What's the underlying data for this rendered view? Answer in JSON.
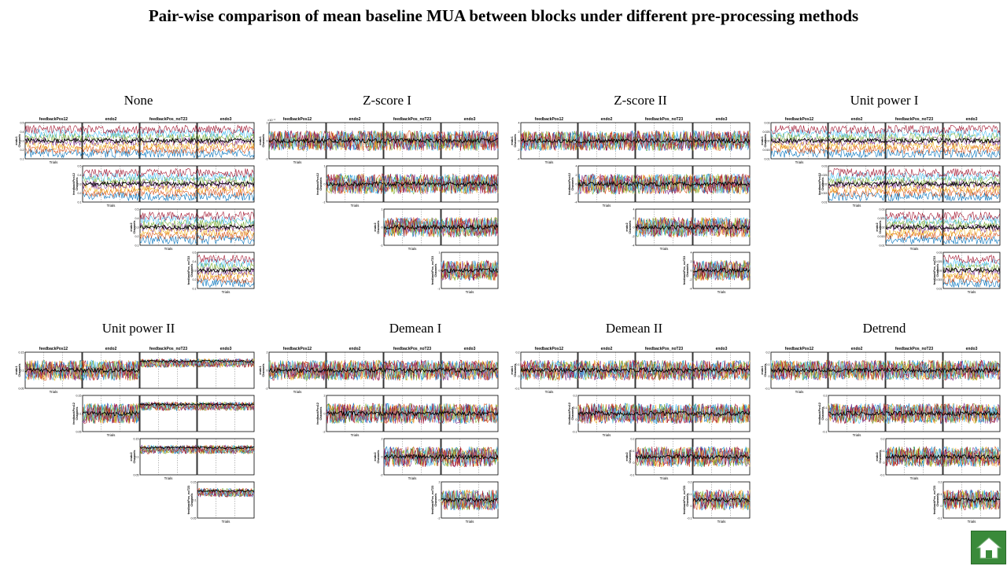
{
  "title": "Pair-wise comparison of mean baseline MUA between blocks under different pre-processing methods",
  "block_names": [
    "feedbackPos12",
    "endo2",
    "feedbackPos_noT23",
    "endo3"
  ],
  "row_labels": [
    [
      "endo1",
      "Channels"
    ],
    [
      "feedbackPos12",
      "Channels"
    ],
    [
      "endo2",
      "Channels"
    ],
    [
      "feedbackPos_noT23",
      "Channels"
    ]
  ],
  "x_label": "Trials",
  "colors": {
    "series": [
      "#0072bd",
      "#d95319",
      "#edb120",
      "#7e2f8e",
      "#77ac30",
      "#4dbeee",
      "#a2142f"
    ],
    "mean_line": "#000000",
    "home_button": "#3a8a3a"
  },
  "icons": {
    "home": "home-icon"
  },
  "chart_data": [
    {
      "type": "line",
      "method": "None",
      "ylim": [
        0.1,
        0.5
      ],
      "yticks": [
        "0.1",
        "0.2",
        "0.3",
        "0.4",
        "0.5"
      ],
      "multiplier": "",
      "style": "stacked"
    },
    {
      "type": "line",
      "method": "Z-score I",
      "ylim": [
        -1,
        1
      ],
      "yticks": [
        "-1",
        "0",
        "1"
      ],
      "multiplier": "×10⁻³",
      "style": "centered"
    },
    {
      "type": "line",
      "method": "Z-score II",
      "ylim": [
        -4,
        4
      ],
      "yticks": [
        "-4",
        "-2",
        "0",
        "2",
        "4"
      ],
      "multiplier": "",
      "style": "centered"
    },
    {
      "type": "line",
      "method": "Unit power I",
      "ylim": [
        0,
        0.03
      ],
      "yticks": [
        "0.01",
        "0.015",
        "0.02",
        "0.025",
        "0.03"
      ],
      "multiplier": "",
      "style": "stacked"
    },
    {
      "type": "line",
      "method": "Unit power II",
      "ylim": [
        0.05,
        0.15
      ],
      "yticks": [
        "0.05",
        "0.1",
        "0.15"
      ],
      "multiplier": "",
      "style": "unitpower2"
    },
    {
      "type": "line",
      "method": "Demean I",
      "ylim": [
        -2,
        2
      ],
      "yticks": [
        "-2",
        "0",
        "2"
      ],
      "multiplier": "",
      "style": "centered"
    },
    {
      "type": "line",
      "method": "Demean II",
      "ylim": [
        -0.1,
        0.2
      ],
      "yticks": [
        "-0.1",
        "0",
        "0.1",
        "0.2"
      ],
      "multiplier": "",
      "style": "centered"
    },
    {
      "type": "line",
      "method": "Detrend",
      "ylim": [
        -0.1,
        0.2
      ],
      "yticks": [
        "-0.1",
        "0",
        "0.1",
        "0.2"
      ],
      "multiplier": "",
      "style": "centered"
    }
  ]
}
